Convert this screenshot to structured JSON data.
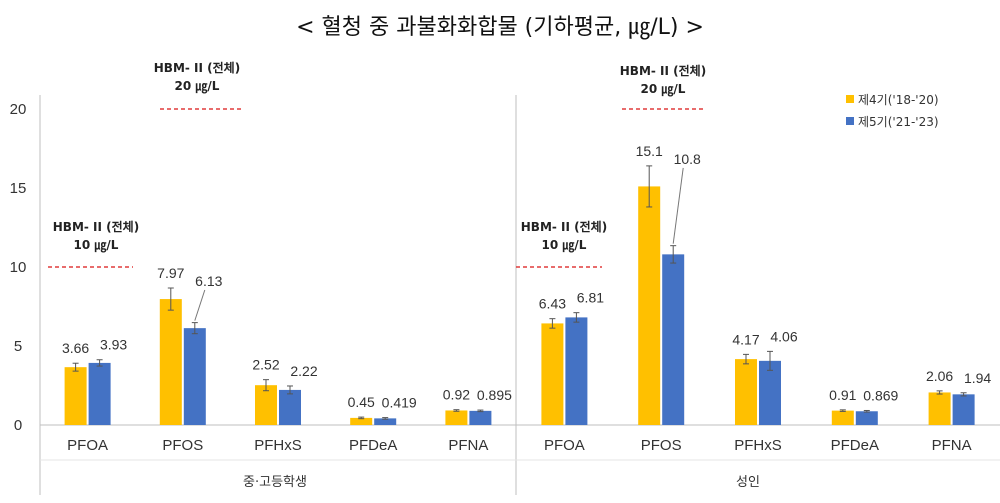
{
  "title": "< 혈청 중 과불화화합물 (기하평균,  ㎍/L) >",
  "colors": {
    "series1": "#FFC000",
    "series2": "#4472C4",
    "error": "#555555",
    "threshold": "#E03C3C"
  },
  "chart_data": [
    {
      "type": "bar",
      "group_label": "중·고등학생",
      "categories": [
        "PFOA",
        "PFOS",
        "PFHxS",
        "PFDeA",
        "PFNA"
      ],
      "series": [
        {
          "name": "제4기('18-'20)",
          "values": [
            3.66,
            7.97,
            2.52,
            0.45,
            0.92
          ],
          "labels": [
            "3.66",
            "7.97",
            "2.52",
            "0.45",
            "0.92"
          ]
        },
        {
          "name": "제5기('21-'23)",
          "values": [
            3.93,
            6.13,
            2.22,
            0.419,
            0.895
          ],
          "labels": [
            "3.93",
            "6.13",
            "2.22",
            "0.419",
            "0.895"
          ]
        }
      ],
      "annotations": [
        {
          "line1": "HBM- II (전체)",
          "line2": "10 ㎍/L",
          "y": 10
        },
        {
          "line1": "HBM- II (전체)",
          "line2": "20 ㎍/L",
          "y": 20
        }
      ]
    },
    {
      "type": "bar",
      "group_label": "성인",
      "categories": [
        "PFOA",
        "PFOS",
        "PFHxS",
        "PFDeA",
        "PFNA"
      ],
      "series": [
        {
          "name": "제4기('18-'20)",
          "values": [
            6.43,
            15.1,
            4.17,
            0.91,
            2.06
          ],
          "labels": [
            "6.43",
            "15.1",
            "4.17",
            "0.91",
            "2.06"
          ]
        },
        {
          "name": "제5기('21-'23)",
          "values": [
            6.81,
            10.8,
            4.06,
            0.869,
            1.94
          ],
          "labels": [
            "6.81",
            "10.8",
            "4.06",
            "0.869",
            "1.94"
          ]
        }
      ],
      "annotations": [
        {
          "line1": "HBM- II (전체)",
          "line2": "10 ㎍/L",
          "y": 10
        },
        {
          "line1": "HBM- II (전체)",
          "line2": "20 ㎍/L",
          "y": 20
        }
      ]
    }
  ],
  "y_axis": {
    "min": 0,
    "max": 20,
    "ticks": [
      "0",
      "5",
      "10",
      "15",
      "20"
    ]
  },
  "legend": {
    "position": "top-right",
    "items": [
      "제4기('18-'20)",
      "제5기('21-'23)"
    ]
  }
}
